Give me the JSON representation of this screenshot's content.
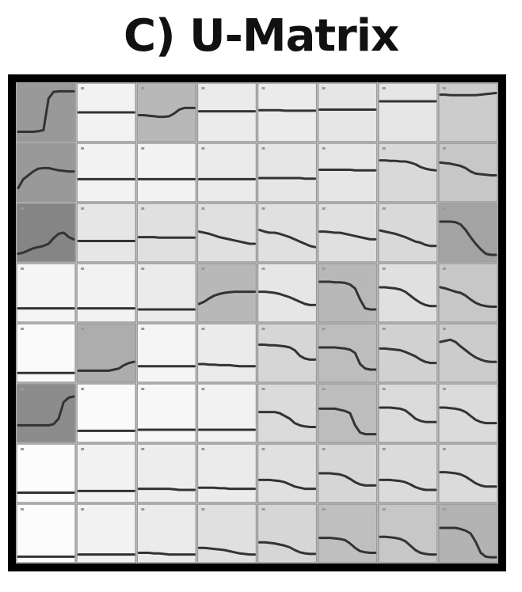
{
  "title": "C) U-Matrix",
  "grid": {
    "rows": 8,
    "cols": 8
  },
  "colors": {
    "frame": "#000000",
    "curve": "#333333",
    "cell_separator": "#9a9a9a"
  },
  "cell_shades": [
    [
      0.6,
      0.95,
      0.72,
      0.92,
      0.92,
      0.9,
      0.9,
      0.8
    ],
    [
      0.6,
      0.95,
      0.95,
      0.92,
      0.9,
      0.9,
      0.85,
      0.78
    ],
    [
      0.52,
      0.9,
      0.88,
      0.88,
      0.88,
      0.88,
      0.85,
      0.64
    ],
    [
      0.96,
      0.95,
      0.92,
      0.72,
      0.9,
      0.72,
      0.88,
      0.78
    ],
    [
      0.98,
      0.68,
      0.96,
      0.92,
      0.84,
      0.74,
      0.82,
      0.8
    ],
    [
      0.55,
      0.98,
      0.97,
      0.95,
      0.86,
      0.74,
      0.86,
      0.86
    ],
    [
      0.99,
      0.95,
      0.93,
      0.92,
      0.88,
      0.84,
      0.86,
      0.86
    ],
    [
      0.99,
      0.95,
      0.92,
      0.88,
      0.84,
      0.75,
      0.78,
      0.7
    ]
  ],
  "cell_curves": [
    [
      [
        0.85,
        0.85,
        0.85,
        0.85,
        0.84,
        0.82,
        0.25,
        0.13,
        0.12,
        0.12,
        0.12,
        0.12
      ],
      [
        0.5,
        0.5,
        0.5,
        0.5,
        0.5,
        0.5,
        0.5,
        0.5,
        0.5,
        0.5,
        0.5,
        0.5
      ],
      [
        0.55,
        0.55,
        0.56,
        0.57,
        0.58,
        0.58,
        0.57,
        0.52,
        0.45,
        0.42,
        0.42,
        0.42
      ],
      [
        0.48,
        0.48,
        0.48,
        0.48,
        0.48,
        0.48,
        0.48,
        0.48,
        0.48,
        0.48,
        0.48,
        0.48
      ],
      [
        0.46,
        0.46,
        0.46,
        0.46,
        0.46,
        0.47,
        0.47,
        0.47,
        0.47,
        0.47,
        0.47,
        0.47
      ],
      [
        0.45,
        0.45,
        0.45,
        0.45,
        0.45,
        0.45,
        0.45,
        0.45,
        0.45,
        0.45,
        0.45,
        0.45
      ],
      [
        0.3,
        0.3,
        0.3,
        0.3,
        0.3,
        0.3,
        0.3,
        0.3,
        0.3,
        0.3,
        0.3,
        0.3
      ],
      [
        0.18,
        0.18,
        0.19,
        0.19,
        0.19,
        0.19,
        0.19,
        0.19,
        0.18,
        0.17,
        0.16,
        0.15
      ]
    ],
    [
      [
        0.78,
        0.62,
        0.55,
        0.48,
        0.43,
        0.42,
        0.42,
        0.44,
        0.46,
        0.47,
        0.48,
        0.48
      ],
      [
        0.62,
        0.62,
        0.62,
        0.62,
        0.62,
        0.62,
        0.62,
        0.62,
        0.62,
        0.62,
        0.62,
        0.62
      ],
      [
        0.62,
        0.62,
        0.62,
        0.62,
        0.62,
        0.62,
        0.62,
        0.62,
        0.62,
        0.62,
        0.62,
        0.62
      ],
      [
        0.62,
        0.62,
        0.62,
        0.62,
        0.62,
        0.62,
        0.62,
        0.62,
        0.62,
        0.62,
        0.62,
        0.62
      ],
      [
        0.6,
        0.6,
        0.6,
        0.6,
        0.6,
        0.6,
        0.6,
        0.6,
        0.6,
        0.61,
        0.61,
        0.61
      ],
      [
        0.45,
        0.45,
        0.45,
        0.45,
        0.45,
        0.45,
        0.45,
        0.46,
        0.46,
        0.46,
        0.46,
        0.46
      ],
      [
        0.28,
        0.28,
        0.29,
        0.29,
        0.3,
        0.3,
        0.32,
        0.35,
        0.4,
        0.43,
        0.45,
        0.46
      ],
      [
        0.32,
        0.33,
        0.34,
        0.36,
        0.38,
        0.42,
        0.48,
        0.52,
        0.53,
        0.54,
        0.55,
        0.55
      ]
    ],
    [
      [
        0.88,
        0.86,
        0.82,
        0.78,
        0.76,
        0.74,
        0.7,
        0.6,
        0.52,
        0.5,
        0.58,
        0.62
      ],
      [
        0.65,
        0.65,
        0.65,
        0.65,
        0.65,
        0.65,
        0.65,
        0.65,
        0.65,
        0.65,
        0.65,
        0.65
      ],
      [
        0.58,
        0.58,
        0.58,
        0.58,
        0.59,
        0.59,
        0.59,
        0.59,
        0.59,
        0.59,
        0.59,
        0.59
      ],
      [
        0.48,
        0.5,
        0.52,
        0.55,
        0.58,
        0.6,
        0.62,
        0.64,
        0.66,
        0.68,
        0.7,
        0.7
      ],
      [
        0.45,
        0.48,
        0.5,
        0.5,
        0.52,
        0.55,
        0.58,
        0.62,
        0.66,
        0.7,
        0.74,
        0.76
      ],
      [
        0.48,
        0.48,
        0.49,
        0.5,
        0.5,
        0.52,
        0.54,
        0.56,
        0.58,
        0.6,
        0.62,
        0.62
      ],
      [
        0.46,
        0.48,
        0.5,
        0.52,
        0.55,
        0.58,
        0.62,
        0.66,
        0.68,
        0.72,
        0.74,
        0.74
      ],
      [
        0.3,
        0.3,
        0.3,
        0.31,
        0.35,
        0.45,
        0.58,
        0.7,
        0.8,
        0.88,
        0.9,
        0.9
      ]
    ],
    [
      [
        0.78,
        0.78,
        0.78,
        0.78,
        0.78,
        0.78,
        0.78,
        0.78,
        0.78,
        0.78,
        0.78,
        0.78
      ],
      [
        0.78,
        0.78,
        0.78,
        0.78,
        0.78,
        0.78,
        0.78,
        0.78,
        0.78,
        0.78,
        0.78,
        0.78
      ],
      [
        0.8,
        0.8,
        0.8,
        0.8,
        0.8,
        0.8,
        0.8,
        0.8,
        0.8,
        0.8,
        0.8,
        0.8
      ],
      [
        0.7,
        0.66,
        0.6,
        0.55,
        0.52,
        0.5,
        0.49,
        0.48,
        0.48,
        0.48,
        0.48,
        0.48
      ],
      [
        0.48,
        0.48,
        0.49,
        0.5,
        0.52,
        0.55,
        0.58,
        0.62,
        0.66,
        0.7,
        0.72,
        0.72
      ],
      [
        0.3,
        0.3,
        0.3,
        0.31,
        0.31,
        0.32,
        0.35,
        0.42,
        0.62,
        0.78,
        0.8,
        0.8
      ],
      [
        0.4,
        0.4,
        0.41,
        0.42,
        0.44,
        0.48,
        0.55,
        0.62,
        0.68,
        0.72,
        0.74,
        0.74
      ],
      [
        0.4,
        0.42,
        0.45,
        0.48,
        0.5,
        0.55,
        0.62,
        0.68,
        0.72,
        0.74,
        0.75,
        0.75
      ]
    ],
    [
      [
        0.86,
        0.86,
        0.86,
        0.86,
        0.86,
        0.86,
        0.86,
        0.86,
        0.86,
        0.86,
        0.86,
        0.86
      ],
      [
        0.82,
        0.82,
        0.82,
        0.82,
        0.82,
        0.82,
        0.82,
        0.8,
        0.78,
        0.72,
        0.68,
        0.66
      ],
      [
        0.74,
        0.74,
        0.74,
        0.74,
        0.74,
        0.74,
        0.74,
        0.74,
        0.74,
        0.74,
        0.74,
        0.74
      ],
      [
        0.7,
        0.7,
        0.71,
        0.71,
        0.72,
        0.72,
        0.72,
        0.73,
        0.74,
        0.74,
        0.74,
        0.74
      ],
      [
        0.35,
        0.35,
        0.36,
        0.36,
        0.37,
        0.38,
        0.4,
        0.45,
        0.55,
        0.6,
        0.62,
        0.62
      ],
      [
        0.4,
        0.4,
        0.4,
        0.4,
        0.41,
        0.42,
        0.44,
        0.5,
        0.7,
        0.78,
        0.8,
        0.8
      ],
      [
        0.42,
        0.42,
        0.43,
        0.44,
        0.45,
        0.48,
        0.52,
        0.56,
        0.62,
        0.66,
        0.68,
        0.68
      ],
      [
        0.3,
        0.28,
        0.26,
        0.3,
        0.38,
        0.45,
        0.52,
        0.58,
        0.62,
        0.65,
        0.66,
        0.66
      ]
    ],
    [
      [
        0.72,
        0.72,
        0.72,
        0.72,
        0.72,
        0.72,
        0.72,
        0.7,
        0.6,
        0.3,
        0.22,
        0.2
      ],
      [
        0.82,
        0.82,
        0.82,
        0.82,
        0.82,
        0.82,
        0.82,
        0.82,
        0.82,
        0.82,
        0.82,
        0.82
      ],
      [
        0.8,
        0.8,
        0.8,
        0.8,
        0.8,
        0.8,
        0.8,
        0.8,
        0.8,
        0.8,
        0.8,
        0.8
      ],
      [
        0.8,
        0.8,
        0.8,
        0.8,
        0.8,
        0.8,
        0.8,
        0.8,
        0.8,
        0.8,
        0.8,
        0.8
      ],
      [
        0.48,
        0.48,
        0.48,
        0.48,
        0.5,
        0.55,
        0.6,
        0.68,
        0.72,
        0.74,
        0.75,
        0.75
      ],
      [
        0.42,
        0.42,
        0.42,
        0.42,
        0.44,
        0.46,
        0.5,
        0.72,
        0.85,
        0.88,
        0.88,
        0.88
      ],
      [
        0.4,
        0.4,
        0.4,
        0.41,
        0.42,
        0.45,
        0.52,
        0.6,
        0.64,
        0.66,
        0.66,
        0.66
      ],
      [
        0.4,
        0.4,
        0.41,
        0.42,
        0.44,
        0.48,
        0.55,
        0.62,
        0.66,
        0.68,
        0.68,
        0.68
      ]
    ],
    [
      [
        0.85,
        0.85,
        0.85,
        0.85,
        0.85,
        0.85,
        0.85,
        0.85,
        0.85,
        0.85,
        0.85,
        0.85
      ],
      [
        0.82,
        0.82,
        0.82,
        0.82,
        0.82,
        0.82,
        0.82,
        0.82,
        0.82,
        0.82,
        0.82,
        0.82
      ],
      [
        0.78,
        0.78,
        0.78,
        0.78,
        0.78,
        0.78,
        0.78,
        0.79,
        0.8,
        0.8,
        0.8,
        0.8
      ],
      [
        0.76,
        0.76,
        0.76,
        0.76,
        0.77,
        0.77,
        0.78,
        0.78,
        0.78,
        0.78,
        0.78,
        0.78
      ],
      [
        0.62,
        0.62,
        0.62,
        0.63,
        0.64,
        0.66,
        0.7,
        0.74,
        0.76,
        0.78,
        0.78,
        0.78
      ],
      [
        0.5,
        0.5,
        0.5,
        0.51,
        0.52,
        0.55,
        0.6,
        0.66,
        0.7,
        0.72,
        0.72,
        0.72
      ],
      [
        0.62,
        0.62,
        0.62,
        0.63,
        0.64,
        0.66,
        0.7,
        0.75,
        0.78,
        0.8,
        0.8,
        0.8
      ],
      [
        0.48,
        0.48,
        0.49,
        0.5,
        0.52,
        0.56,
        0.62,
        0.68,
        0.72,
        0.74,
        0.74,
        0.74
      ]
    ],
    [
      [
        0.92,
        0.92,
        0.92,
        0.92,
        0.92,
        0.92,
        0.92,
        0.92,
        0.92,
        0.92,
        0.92,
        0.92
      ],
      [
        0.88,
        0.88,
        0.88,
        0.88,
        0.88,
        0.88,
        0.88,
        0.88,
        0.88,
        0.88,
        0.88,
        0.88
      ],
      [
        0.85,
        0.85,
        0.85,
        0.86,
        0.86,
        0.87,
        0.88,
        0.88,
        0.88,
        0.88,
        0.88,
        0.88
      ],
      [
        0.76,
        0.76,
        0.77,
        0.78,
        0.79,
        0.8,
        0.82,
        0.84,
        0.86,
        0.87,
        0.88,
        0.88
      ],
      [
        0.66,
        0.66,
        0.67,
        0.68,
        0.7,
        0.72,
        0.75,
        0.8,
        0.84,
        0.86,
        0.87,
        0.87
      ],
      [
        0.58,
        0.58,
        0.58,
        0.59,
        0.6,
        0.62,
        0.68,
        0.76,
        0.82,
        0.84,
        0.85,
        0.85
      ],
      [
        0.56,
        0.56,
        0.57,
        0.58,
        0.6,
        0.64,
        0.72,
        0.8,
        0.85,
        0.87,
        0.88,
        0.88
      ],
      [
        0.4,
        0.4,
        0.4,
        0.4,
        0.42,
        0.45,
        0.5,
        0.65,
        0.85,
        0.92,
        0.93,
        0.93
      ]
    ]
  ]
}
